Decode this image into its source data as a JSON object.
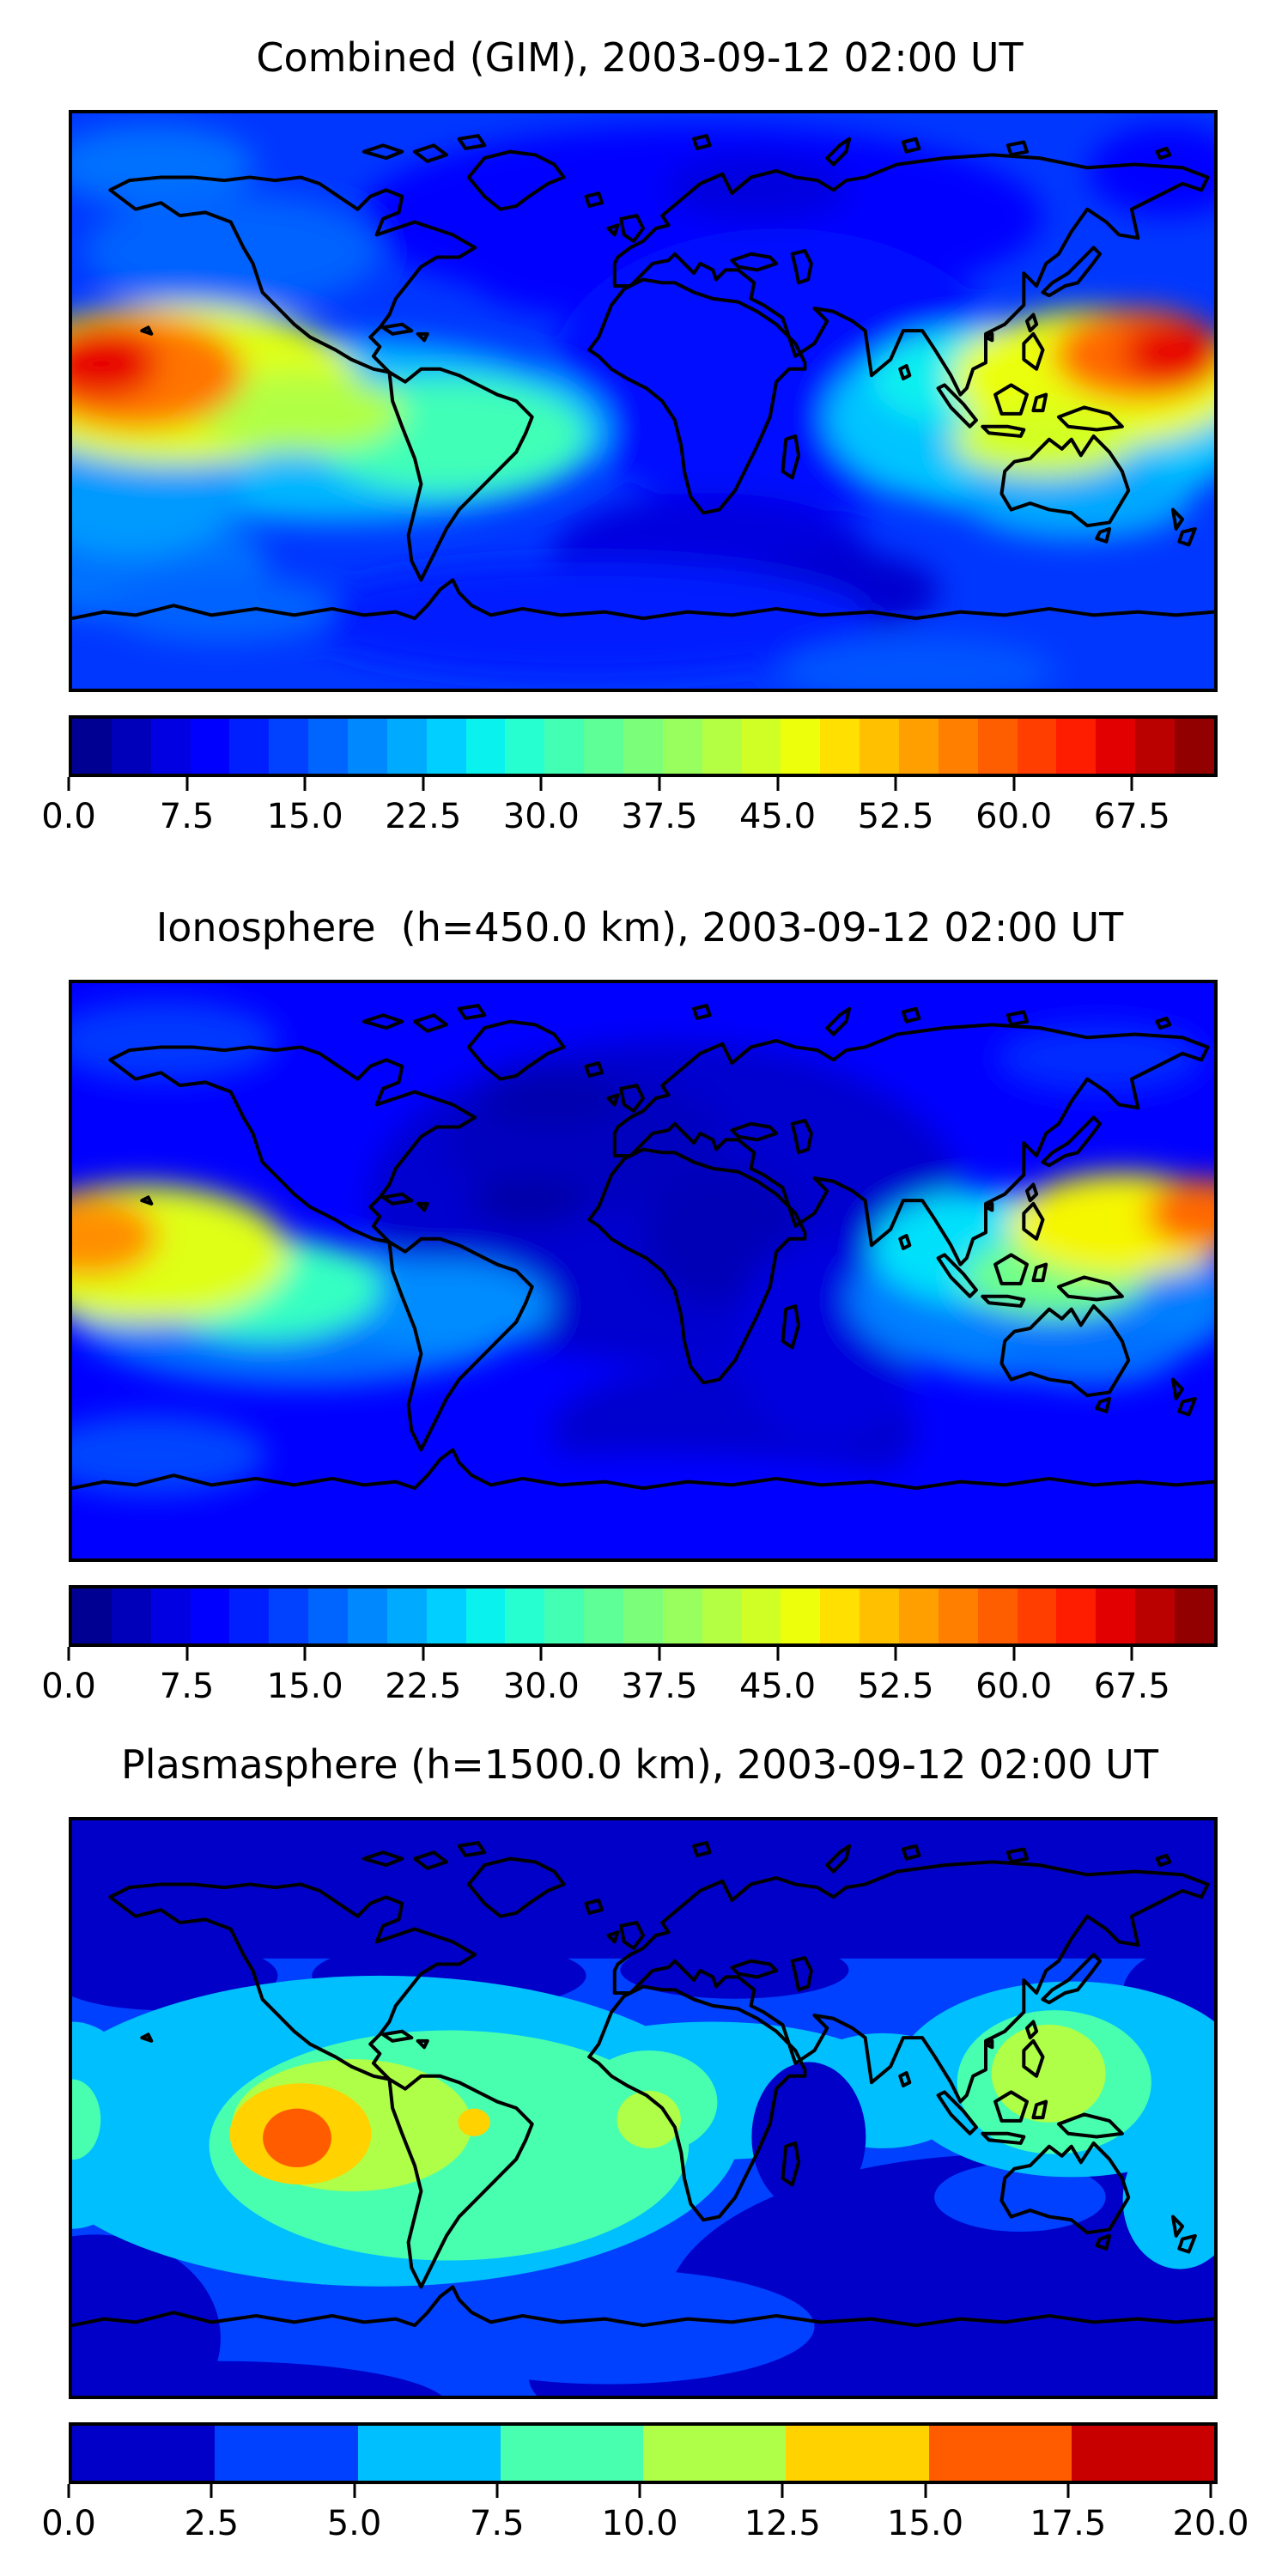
{
  "figure": {
    "background": "#ffffff",
    "coastline_color": "#000000",
    "colormap": "jet"
  },
  "chart_data": {
    "type": "heatmap",
    "subtype": "filled-contour world maps (equirectangular, lon -180..180, lat -90..90) with horizontal colorbars",
    "panels": [
      {
        "title": "Combined (GIM), 2003-09-12 02:00 UT",
        "render": "smooth",
        "colorbar": {
          "vmin": 0,
          "vmax": 72.5,
          "n_segments": 29,
          "tick_values": [
            0,
            7.5,
            15.0,
            22.5,
            30.0,
            37.5,
            45.0,
            52.5,
            60.0,
            67.5
          ],
          "tick_labels": [
            "0.0",
            "7.5",
            "15.0",
            "22.5",
            "30.0",
            "37.5",
            "45.0",
            "52.5",
            "60.0",
            "67.5"
          ]
        },
        "field": {
          "base": 13,
          "blobs": [
            {
              "x": 0.55,
              "y": 0.18,
              "rx": 0.3,
              "ry": 0.16,
              "v": 9
            },
            {
              "x": 0.44,
              "y": 0.26,
              "rx": 0.1,
              "ry": 0.09,
              "v": 8
            },
            {
              "x": 0.6,
              "y": 0.13,
              "rx": 0.08,
              "ry": 0.06,
              "v": 6
            },
            {
              "x": 0.62,
              "y": 0.45,
              "rx": 0.2,
              "ry": 0.25,
              "v": 10
            },
            {
              "x": 0.56,
              "y": 0.77,
              "rx": 0.14,
              "ry": 0.11,
              "v": 6
            },
            {
              "x": 0.67,
              "y": 0.83,
              "rx": 0.09,
              "ry": 0.07,
              "v": 5
            },
            {
              "x": 0.45,
              "y": 0.88,
              "rx": 0.25,
              "ry": 0.1,
              "v": 11
            },
            {
              "x": 0.96,
              "y": 0.1,
              "rx": 0.07,
              "ry": 0.08,
              "v": 9
            },
            {
              "x": 0.07,
              "y": 0.09,
              "rx": 0.09,
              "ry": 0.07,
              "v": 17
            },
            {
              "x": 0.14,
              "y": 0.24,
              "rx": 0.13,
              "ry": 0.1,
              "v": 16
            },
            {
              "x": 0.05,
              "y": 0.78,
              "rx": 0.12,
              "ry": 0.1,
              "v": 17
            },
            {
              "x": 0.13,
              "y": 0.86,
              "rx": 0.1,
              "ry": 0.06,
              "v": 16
            },
            {
              "x": 0.74,
              "y": 0.97,
              "rx": 0.12,
              "ry": 0.06,
              "v": 15
            },
            {
              "x": 0.23,
              "y": 0.55,
              "rx": 0.24,
              "ry": 0.16,
              "v": 22
            },
            {
              "x": 0.05,
              "y": 0.65,
              "rx": 0.1,
              "ry": 0.12,
              "v": 20
            },
            {
              "x": 0.85,
              "y": 0.53,
              "rx": 0.19,
              "ry": 0.17,
              "v": 23
            },
            {
              "x": 0.88,
              "y": 0.67,
              "rx": 0.1,
              "ry": 0.07,
              "v": 21
            },
            {
              "x": 0.77,
              "y": 0.46,
              "rx": 0.07,
              "ry": 0.08,
              "v": 26
            },
            {
              "x": 0.33,
              "y": 0.56,
              "rx": 0.12,
              "ry": 0.1,
              "v": 31
            },
            {
              "x": 0.09,
              "y": 0.47,
              "rx": 0.16,
              "ry": 0.14,
              "v": 45
            },
            {
              "x": 0.2,
              "y": 0.52,
              "rx": 0.09,
              "ry": 0.07,
              "v": 41
            },
            {
              "x": 0.9,
              "y": 0.46,
              "rx": 0.13,
              "ry": 0.12,
              "v": 46
            },
            {
              "x": 0.85,
              "y": 0.57,
              "rx": 0.08,
              "ry": 0.06,
              "v": 44
            },
            {
              "x": 0.055,
              "y": 0.45,
              "rx": 0.095,
              "ry": 0.1,
              "v": 57
            },
            {
              "x": 0.935,
              "y": 0.42,
              "rx": 0.075,
              "ry": 0.08,
              "v": 58
            },
            {
              "x": 0.025,
              "y": 0.435,
              "rx": 0.05,
              "ry": 0.06,
              "v": 66
            },
            {
              "x": 0.965,
              "y": 0.415,
              "rx": 0.045,
              "ry": 0.055,
              "v": 66
            }
          ]
        }
      },
      {
        "title": "Ionosphere  (h=450.0 km), 2003-09-12 02:00 UT",
        "render": "smooth",
        "colorbar": {
          "vmin": 0,
          "vmax": 72.5,
          "n_segments": 29,
          "tick_values": [
            0,
            7.5,
            15.0,
            22.5,
            30.0,
            37.5,
            45.0,
            52.5,
            60.0,
            67.5
          ],
          "tick_labels": [
            "0.0",
            "7.5",
            "15.0",
            "22.5",
            "30.0",
            "37.5",
            "45.0",
            "52.5",
            "60.0",
            "67.5"
          ]
        },
        "field": {
          "base": 9,
          "blobs": [
            {
              "x": 0.52,
              "y": 0.38,
              "rx": 0.26,
              "ry": 0.28,
              "v": 5
            },
            {
              "x": 0.45,
              "y": 0.28,
              "rx": 0.12,
              "ry": 0.12,
              "v": 4
            },
            {
              "x": 0.42,
              "y": 0.2,
              "rx": 0.06,
              "ry": 0.05,
              "v": 3
            },
            {
              "x": 0.4,
              "y": 0.38,
              "rx": 0.05,
              "ry": 0.04,
              "v": 2.5
            },
            {
              "x": 0.57,
              "y": 0.44,
              "rx": 0.07,
              "ry": 0.12,
              "v": 3.5
            },
            {
              "x": 0.58,
              "y": 0.78,
              "rx": 0.16,
              "ry": 0.12,
              "v": 5
            },
            {
              "x": 0.66,
              "y": 0.62,
              "rx": 0.08,
              "ry": 0.18,
              "v": 6
            },
            {
              "x": 0.5,
              "y": 0.92,
              "rx": 0.3,
              "ry": 0.1,
              "v": 8
            },
            {
              "x": 0.08,
              "y": 0.1,
              "rx": 0.1,
              "ry": 0.07,
              "v": 13
            },
            {
              "x": 0.9,
              "y": 0.13,
              "rx": 0.09,
              "ry": 0.06,
              "v": 12
            },
            {
              "x": 0.2,
              "y": 0.58,
              "rx": 0.2,
              "ry": 0.12,
              "v": 17
            },
            {
              "x": 0.33,
              "y": 0.56,
              "rx": 0.09,
              "ry": 0.08,
              "v": 19
            },
            {
              "x": 0.07,
              "y": 0.82,
              "rx": 0.1,
              "ry": 0.07,
              "v": 14
            },
            {
              "x": 0.85,
              "y": 0.55,
              "rx": 0.17,
              "ry": 0.14,
              "v": 18
            },
            {
              "x": 0.89,
              "y": 0.64,
              "rx": 0.08,
              "ry": 0.06,
              "v": 17
            },
            {
              "x": 0.17,
              "y": 0.53,
              "rx": 0.1,
              "ry": 0.09,
              "v": 30
            },
            {
              "x": 0.8,
              "y": 0.46,
              "rx": 0.1,
              "ry": 0.1,
              "v": 25
            },
            {
              "x": 0.86,
              "y": 0.51,
              "rx": 0.08,
              "ry": 0.07,
              "v": 35
            },
            {
              "x": 0.06,
              "y": 0.47,
              "rx": 0.13,
              "ry": 0.12,
              "v": 45
            },
            {
              "x": 0.92,
              "y": 0.42,
              "rx": 0.1,
              "ry": 0.09,
              "v": 47
            },
            {
              "x": 0.015,
              "y": 0.44,
              "rx": 0.06,
              "ry": 0.07,
              "v": 55
            },
            {
              "x": 0.99,
              "y": 0.4,
              "rx": 0.05,
              "ry": 0.06,
              "v": 58
            }
          ]
        }
      },
      {
        "title": "Plasmasphere (h=1500.0 km), 2003-09-12 02:00 UT",
        "render": "discrete",
        "colorbar": {
          "vmin": 0,
          "vmax": 20,
          "n_segments": 8,
          "tick_values": [
            0,
            2.5,
            5.0,
            7.5,
            10.0,
            12.5,
            15.0,
            17.5,
            20.0
          ],
          "tick_labels": [
            "0.0",
            "2.5",
            "5.0",
            "7.5",
            "10.0",
            "12.5",
            "15.0",
            "17.5",
            "20.0"
          ]
        },
        "field": {
          "base": 3.75,
          "blobs": [
            {
              "rect": true,
              "x": 0,
              "y": 0,
              "w": 1,
              "h": 0.24,
              "v": 1.25
            },
            {
              "x": 0.08,
              "y": 0.27,
              "rx": 0.1,
              "ry": 0.06,
              "v": 1.25
            },
            {
              "x": 0.33,
              "y": 0.27,
              "rx": 0.12,
              "ry": 0.06,
              "v": 1.25
            },
            {
              "x": 0.58,
              "y": 0.26,
              "rx": 0.1,
              "ry": 0.05,
              "v": 1.25
            },
            {
              "x": 0.98,
              "y": 0.3,
              "rx": 0.06,
              "ry": 0.08,
              "v": 1.25
            },
            {
              "x": 0.82,
              "y": 0.85,
              "rx": 0.3,
              "ry": 0.27,
              "v": 1.25
            },
            {
              "x": 0.62,
              "y": 0.97,
              "rx": 0.22,
              "ry": 0.12,
              "v": 1.25
            },
            {
              "x": 0.02,
              "y": 0.9,
              "rx": 0.11,
              "ry": 0.18,
              "v": 1.25
            },
            {
              "x": 0.13,
              "y": 1.02,
              "rx": 0.2,
              "ry": 0.08,
              "v": 1.25
            },
            {
              "x": 0.83,
              "y": 0.655,
              "rx": 0.075,
              "ry": 0.06,
              "v": 3.75
            },
            {
              "x": 0.47,
              "y": 0.88,
              "rx": 0.18,
              "ry": 0.1,
              "v": 3.75
            },
            {
              "x": 0.27,
              "y": 0.54,
              "rx": 0.315,
              "ry": 0.27,
              "v": 6.25
            },
            {
              "x": 0.56,
              "y": 0.47,
              "rx": 0.17,
              "ry": 0.12,
              "v": 6.25
            },
            {
              "x": 0.71,
              "y": 0.47,
              "rx": 0.08,
              "ry": 0.1,
              "v": 6.25
            },
            {
              "x": 0.875,
              "y": 0.45,
              "rx": 0.155,
              "ry": 0.17,
              "v": 6.25
            },
            {
              "x": 0.0,
              "y": 0.53,
              "rx": 0.065,
              "ry": 0.18,
              "v": 6.25
            },
            {
              "x": 1.0,
              "y": 0.52,
              "rx": 0.04,
              "ry": 0.14,
              "v": 6.25
            },
            {
              "x": 0.97,
              "y": 0.66,
              "rx": 0.05,
              "ry": 0.12,
              "v": 6.25
            },
            {
              "x": 0.645,
              "y": 0.55,
              "rx": 0.05,
              "ry": 0.13,
              "v": 1.25
            },
            {
              "x": 0.33,
              "y": 0.565,
              "rx": 0.21,
              "ry": 0.2,
              "v": 8.75
            },
            {
              "x": 0.505,
              "y": 0.49,
              "rx": 0.06,
              "ry": 0.09,
              "v": 8.75
            },
            {
              "x": 0.86,
              "y": 0.455,
              "rx": 0.085,
              "ry": 0.125,
              "v": 8.75
            },
            {
              "x": 0.0,
              "y": 0.52,
              "rx": 0.025,
              "ry": 0.07,
              "v": 8.75
            },
            {
              "x": 0.245,
              "y": 0.53,
              "rx": 0.105,
              "ry": 0.115,
              "v": 11.25
            },
            {
              "x": 0.505,
              "y": 0.52,
              "rx": 0.028,
              "ry": 0.05,
              "v": 11.25
            },
            {
              "x": 0.855,
              "y": 0.44,
              "rx": 0.05,
              "ry": 0.085,
              "v": 11.25
            },
            {
              "x": 0.2,
              "y": 0.545,
              "rx": 0.062,
              "ry": 0.088,
              "v": 13.75
            },
            {
              "x": 0.352,
              "y": 0.525,
              "rx": 0.014,
              "ry": 0.024,
              "v": 13.75
            },
            {
              "x": 0.197,
              "y": 0.552,
              "rx": 0.03,
              "ry": 0.051,
              "v": 16.25
            }
          ]
        }
      }
    ]
  }
}
